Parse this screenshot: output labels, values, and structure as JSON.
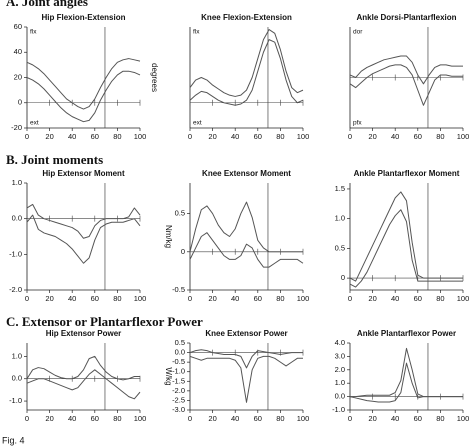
{
  "sections": [
    "A. Joint angles",
    "B. Joint moments",
    "C. Extensor or Plantarflexor Power"
  ],
  "caption": "Fig. 4",
  "chart_data": [
    {
      "type": "line",
      "title": "Hip Flexion-Extension",
      "x": [
        0,
        5,
        10,
        15,
        20,
        25,
        30,
        35,
        40,
        45,
        50,
        55,
        60,
        65,
        70,
        75,
        80,
        85,
        90,
        95,
        100
      ],
      "xlim": [
        0,
        100
      ],
      "xticks": [
        0,
        20,
        40,
        60,
        80,
        100
      ],
      "ylim": [
        -20,
        60
      ],
      "yticks": [
        60,
        40,
        20,
        0,
        -20
      ],
      "vline": 69,
      "annotations": {
        "top": "flx",
        "bottom": "ext"
      },
      "series": [
        {
          "color": "#555555",
          "values": [
            32,
            30,
            27,
            23,
            18,
            13,
            8,
            3,
            0,
            -3,
            -5,
            -3,
            3,
            12,
            20,
            27,
            32,
            34,
            35,
            34,
            33
          ]
        },
        {
          "color": "#555555",
          "values": [
            20,
            18,
            15,
            11,
            6,
            1,
            -4,
            -8,
            -11,
            -13,
            -15,
            -14,
            -8,
            2,
            10,
            17,
            22,
            25,
            25,
            24,
            22
          ]
        }
      ]
    },
    {
      "type": "line",
      "title": "Knee Flexion-Extension",
      "ylabel": "degrees",
      "x": [
        0,
        5,
        10,
        15,
        20,
        25,
        30,
        35,
        40,
        45,
        50,
        55,
        60,
        65,
        70,
        75,
        80,
        85,
        90,
        95,
        100
      ],
      "xlim": [
        0,
        100
      ],
      "xticks": [
        0,
        20,
        40,
        60,
        80,
        100
      ],
      "ylim": [
        -20,
        60
      ],
      "vline": 69,
      "annotations": {
        "top": "flx",
        "bottom": "ext"
      },
      "series": [
        {
          "color": "#555555",
          "values": [
            12,
            18,
            20,
            18,
            14,
            11,
            8,
            6,
            5,
            6,
            10,
            20,
            35,
            50,
            58,
            55,
            42,
            25,
            12,
            8,
            10
          ]
        },
        {
          "color": "#555555",
          "values": [
            2,
            6,
            9,
            8,
            5,
            2,
            0,
            -1,
            -2,
            -1,
            2,
            10,
            25,
            40,
            50,
            48,
            35,
            18,
            5,
            0,
            2
          ]
        }
      ]
    },
    {
      "type": "line",
      "title": "Ankle Dorsi-Plantarflexion",
      "x": [
        0,
        5,
        10,
        15,
        20,
        25,
        30,
        35,
        40,
        45,
        50,
        55,
        60,
        65,
        70,
        75,
        80,
        85,
        90,
        95,
        100
      ],
      "xlim": [
        0,
        100
      ],
      "xticks": [
        0,
        20,
        40,
        60,
        80,
        100
      ],
      "ylim": [
        -40,
        40
      ],
      "vline": 69,
      "annotations": {
        "top": "dor",
        "bottom": "pfx"
      },
      "series": [
        {
          "color": "#555555",
          "values": [
            2,
            0,
            5,
            8,
            10,
            12,
            14,
            15,
            16,
            17,
            17,
            12,
            2,
            -5,
            2,
            8,
            10,
            10,
            9,
            9,
            9
          ]
        },
        {
          "color": "#555555",
          "values": [
            -5,
            -8,
            -4,
            0,
            3,
            5,
            7,
            9,
            10,
            10,
            8,
            2,
            -10,
            -22,
            -12,
            -2,
            2,
            2,
            1,
            1,
            1
          ]
        }
      ]
    },
    {
      "type": "line",
      "title": "Hip Extensor Moment",
      "x": [
        0,
        5,
        10,
        15,
        20,
        25,
        30,
        35,
        40,
        45,
        50,
        55,
        60,
        65,
        70,
        75,
        80,
        85,
        90,
        95,
        100
      ],
      "xlim": [
        0,
        100
      ],
      "xticks": [
        0,
        20,
        40,
        60,
        80,
        100
      ],
      "ylim": [
        -2,
        1
      ],
      "yticks": [
        {
          "value": 1,
          "label": "1.0"
        },
        {
          "value": 0,
          "label": "0.0"
        },
        {
          "value": -1,
          "label": "-1.0"
        },
        {
          "value": -2,
          "label": "-2.0"
        }
      ],
      "vline": 69,
      "series": [
        {
          "color": "#555555",
          "values": [
            0.3,
            0.4,
            0.1,
            0.0,
            -0.05,
            -0.1,
            -0.15,
            -0.2,
            -0.25,
            -0.35,
            -0.55,
            -0.5,
            -0.2,
            -0.05,
            0,
            0,
            0,
            0,
            0.05,
            0.3,
            0.1
          ]
        },
        {
          "color": "#555555",
          "values": [
            -0.1,
            0.1,
            -0.3,
            -0.4,
            -0.45,
            -0.5,
            -0.6,
            -0.7,
            -0.85,
            -1.05,
            -1.25,
            -1.1,
            -0.6,
            -0.25,
            -0.15,
            -0.1,
            -0.1,
            -0.1,
            -0.05,
            0.0,
            -0.2
          ]
        }
      ]
    },
    {
      "type": "line",
      "title": "Knee Extensor Moment",
      "ylabel": "Nm/kg",
      "x": [
        0,
        5,
        10,
        15,
        20,
        25,
        30,
        35,
        40,
        45,
        50,
        55,
        60,
        65,
        70,
        75,
        80,
        85,
        90,
        95,
        100
      ],
      "xlim": [
        0,
        100
      ],
      "xticks": [
        0,
        20,
        40,
        60,
        80,
        100
      ],
      "ylim": [
        -0.5,
        0.9
      ],
      "yticks": [
        0.5,
        0,
        -0.5
      ],
      "vline": 69,
      "series": [
        {
          "color": "#555555",
          "values": [
            0,
            0.3,
            0.55,
            0.6,
            0.5,
            0.35,
            0.25,
            0.2,
            0.3,
            0.5,
            0.65,
            0.45,
            0.15,
            0.05,
            0,
            0,
            0,
            0,
            0,
            0,
            0
          ]
        },
        {
          "color": "#555555",
          "values": [
            -0.1,
            0.05,
            0.2,
            0.25,
            0.15,
            0.05,
            -0.05,
            -0.1,
            -0.1,
            -0.05,
            0.1,
            0.05,
            -0.1,
            -0.2,
            -0.2,
            -0.15,
            -0.1,
            -0.1,
            -0.1,
            -0.1,
            -0.15
          ]
        }
      ]
    },
    {
      "type": "line",
      "title": "Ankle Plantarflexor Moment",
      "x": [
        0,
        5,
        10,
        15,
        20,
        25,
        30,
        35,
        40,
        45,
        50,
        55,
        60,
        65,
        70,
        75,
        80,
        85,
        90,
        95,
        100
      ],
      "xlim": [
        0,
        100
      ],
      "xticks": [
        0,
        20,
        40,
        60,
        80,
        100
      ],
      "ylim": [
        -0.2,
        1.6
      ],
      "yticks": [
        1.5,
        {
          "value": 1,
          "label": "1.0"
        },
        0.5,
        0
      ],
      "vline": 69,
      "series": [
        {
          "color": "#555555",
          "values": [
            0,
            -0.05,
            0.15,
            0.35,
            0.55,
            0.75,
            0.95,
            1.15,
            1.35,
            1.45,
            1.3,
            0.6,
            0.05,
            0,
            0,
            0,
            0,
            0,
            0,
            0,
            0
          ]
        },
        {
          "color": "#555555",
          "values": [
            -0.1,
            -0.15,
            -0.05,
            0.1,
            0.3,
            0.5,
            0.7,
            0.9,
            1.05,
            1.15,
            0.95,
            0.3,
            -0.05,
            -0.05,
            -0.05,
            -0.05,
            -0.05,
            -0.05,
            -0.05,
            -0.05,
            -0.05
          ]
        }
      ]
    },
    {
      "type": "line",
      "title": "Hip Extensor Power",
      "x": [
        0,
        5,
        10,
        15,
        20,
        25,
        30,
        35,
        40,
        45,
        50,
        55,
        60,
        65,
        70,
        75,
        80,
        85,
        90,
        95,
        100
      ],
      "xlim": [
        0,
        100
      ],
      "xticks": [
        0,
        20,
        40,
        60,
        80,
        100
      ],
      "ylim": [
        -1.4,
        1.6
      ],
      "yticks": [
        {
          "value": 1,
          "label": "1.0"
        },
        {
          "value": 0,
          "label": "0.0"
        },
        {
          "value": -1,
          "label": "-1.0"
        }
      ],
      "vline": 69,
      "series": [
        {
          "color": "#555555",
          "values": [
            0,
            0.4,
            0.5,
            0.45,
            0.3,
            0.15,
            0.05,
            0,
            0,
            0.1,
            0.4,
            0.9,
            1.0,
            0.6,
            0.3,
            0.1,
            0,
            -0.05,
            0,
            0.1,
            0.1
          ]
        },
        {
          "color": "#555555",
          "values": [
            -0.2,
            -0.1,
            0,
            0,
            -0.1,
            -0.2,
            -0.3,
            -0.4,
            -0.5,
            -0.4,
            -0.1,
            0.2,
            0.4,
            0.2,
            0,
            -0.2,
            -0.4,
            -0.6,
            -0.8,
            -0.9,
            -0.6
          ]
        }
      ]
    },
    {
      "type": "line",
      "title": "Knee Extensor Power",
      "ylabel": "W/kg",
      "x": [
        0,
        5,
        10,
        15,
        20,
        25,
        30,
        35,
        40,
        45,
        50,
        55,
        60,
        65,
        70,
        75,
        80,
        85,
        90,
        95,
        100
      ],
      "xlim": [
        0,
        100
      ],
      "xticks": [
        0,
        20,
        40,
        60,
        80,
        100
      ],
      "ylim": [
        -3,
        0.5
      ],
      "yticks": [
        0.5,
        {
          "value": 0,
          "label": "0.0"
        },
        -0.5,
        {
          "value": -1,
          "label": "-1.0"
        },
        -1.5,
        {
          "value": -2,
          "label": "-2.0"
        },
        -2.5,
        {
          "value": -3,
          "label": "-3.0"
        }
      ],
      "vline": 69,
      "series": [
        {
          "color": "#555555",
          "values": [
            0,
            0.1,
            0.15,
            0.1,
            0,
            -0.05,
            -0.1,
            -0.1,
            -0.1,
            -0.2,
            -0.8,
            -0.2,
            0.1,
            0.05,
            0,
            -0.05,
            -0.1,
            -0.05,
            0,
            0,
            0
          ]
        },
        {
          "color": "#555555",
          "values": [
            -0.2,
            -0.3,
            -0.4,
            -0.3,
            -0.3,
            -0.3,
            -0.3,
            -0.3,
            -0.4,
            -0.8,
            -2.6,
            -0.9,
            -0.3,
            -0.2,
            -0.2,
            -0.3,
            -0.5,
            -0.7,
            -0.5,
            -0.3,
            -0.3
          ]
        }
      ]
    },
    {
      "type": "line",
      "title": "Ankle Plantarflexor Power",
      "x": [
        0,
        5,
        10,
        15,
        20,
        25,
        30,
        35,
        40,
        45,
        50,
        55,
        60,
        65,
        70,
        75,
        80,
        85,
        90,
        95,
        100
      ],
      "xlim": [
        0,
        100
      ],
      "xticks": [
        0,
        20,
        40,
        60,
        80,
        100
      ],
      "ylim": [
        -1,
        4
      ],
      "yticks": [
        {
          "value": 4,
          "label": "4.0"
        },
        {
          "value": 3,
          "label": "3.0"
        },
        {
          "value": 2,
          "label": "2.0"
        },
        {
          "value": 1,
          "label": "1.0"
        },
        {
          "value": 0,
          "label": "0.0"
        },
        {
          "value": -1,
          "label": "-1.0"
        }
      ],
      "vline": 69,
      "series": [
        {
          "color": "#555555",
          "values": [
            0,
            0,
            0.05,
            0.1,
            0.1,
            0.1,
            0.1,
            0.1,
            0.3,
            1.2,
            3.6,
            2.0,
            0.2,
            0,
            0,
            0,
            0,
            0,
            0,
            0,
            0
          ]
        },
        {
          "color": "#555555",
          "values": [
            0,
            -0.1,
            -0.2,
            -0.3,
            -0.35,
            -0.4,
            -0.4,
            -0.4,
            -0.3,
            0.3,
            2.5,
            1.0,
            -0.1,
            0,
            0,
            0,
            0,
            0,
            0,
            0,
            0
          ]
        }
      ]
    }
  ]
}
